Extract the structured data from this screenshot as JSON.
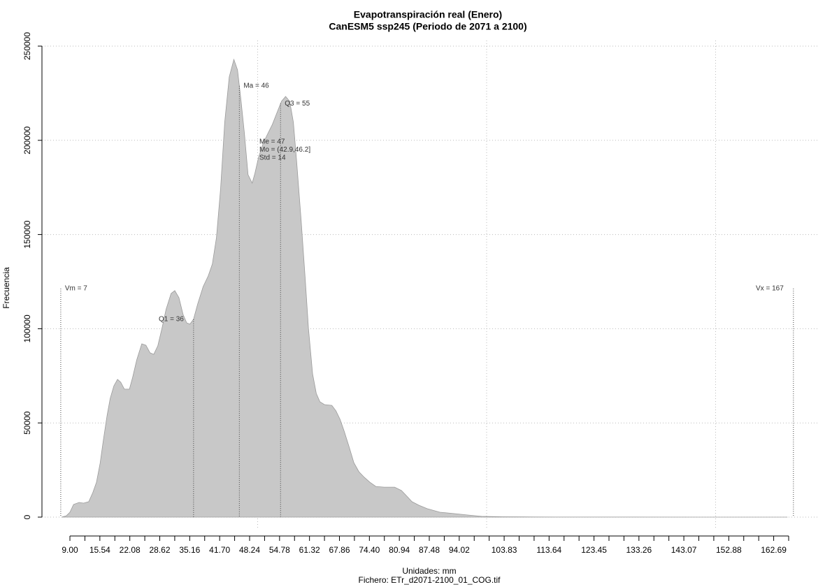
{
  "chart_data": {
    "type": "area",
    "title": "Evapotranspiración real (Enero)",
    "subtitle": "CanESM5 ssp245 (Periodo de 2071 a 2100)",
    "xlabel": "Unidades: mm",
    "ylabel": "Frecuencia",
    "caption": "Fichero: ETr_d2071-2100_01_COG.tif",
    "color": "#c8c8c8",
    "x": [
      7.2,
      8.2,
      9.0,
      9.8,
      11.0,
      12.0,
      13.1,
      14.0,
      14.8,
      15.6,
      16.3,
      17.1,
      17.8,
      18.6,
      19.4,
      20.1,
      20.9,
      22.0,
      22.7,
      23.6,
      24.7,
      25.6,
      26.5,
      27.3,
      28.2,
      29.1,
      30.0,
      31.1,
      31.9,
      32.8,
      33.7,
      34.5,
      35.2,
      36.0,
      36.9,
      38.1,
      39.2,
      40.1,
      41.0,
      41.9,
      42.8,
      43.8,
      44.8,
      45.6,
      46.3,
      47.1,
      47.9,
      48.8,
      49.4,
      50.2,
      51.2,
      52.3,
      53.2,
      54.1,
      55.2,
      56.1,
      57.0,
      57.8,
      58.5,
      59.5,
      60.4,
      61.1,
      62.0,
      62.8,
      63.6,
      64.6,
      66.2,
      67.1,
      68.0,
      68.9,
      70.0,
      71.0,
      72.1,
      73.3,
      74.5,
      75.8,
      77.6,
      79.9,
      81.4,
      82.6,
      83.7,
      85.2,
      87.0,
      89.8,
      92.8,
      95.9,
      98.9,
      103.5,
      108.1,
      115.7,
      131,
      146,
      165.7
    ],
    "values": [
      0,
      700,
      2600,
      6700,
      7800,
      7400,
      8200,
      13000,
      18500,
      28600,
      40800,
      53800,
      63000,
      69700,
      73100,
      71600,
      67900,
      67900,
      74200,
      83500,
      92000,
      91200,
      87200,
      86400,
      90900,
      100100,
      110200,
      118700,
      120200,
      116500,
      107600,
      103100,
      102400,
      105000,
      113100,
      122400,
      128000,
      134300,
      148400,
      174300,
      209600,
      233700,
      242900,
      237400,
      222500,
      204000,
      181700,
      177300,
      182500,
      191000,
      198400,
      204000,
      208400,
      214000,
      220700,
      223300,
      220700,
      209600,
      189200,
      157600,
      126100,
      100100,
      76000,
      65600,
      61200,
      59700,
      59300,
      56400,
      51900,
      45600,
      37100,
      28900,
      24100,
      21100,
      18500,
      16300,
      15900,
      15900,
      14100,
      11100,
      8200,
      6300,
      4500,
      2600,
      1900,
      1100,
      400,
      200,
      100,
      50,
      20,
      10,
      0
    ],
    "xlim": [
      9,
      165.96
    ],
    "ylim": [
      0,
      250000
    ],
    "yticks": [
      0,
      50000,
      100000,
      150000,
      200000,
      250000
    ],
    "xticks": [
      {
        "value": 9,
        "label": "9.00"
      },
      15.54,
      22.08,
      28.62,
      35.16,
      {
        "value": 41.7,
        "label": "41.70"
      },
      48.24,
      54.78,
      61.32,
      67.86,
      {
        "value": 74.4,
        "label": "74.40"
      },
      80.94,
      87.48,
      94.02,
      103.83,
      113.64,
      123.45,
      133.26,
      143.07,
      152.88,
      162.69
    ],
    "xticks_minor": [
      12.27,
      18.81,
      25.35,
      31.89,
      38.43,
      44.97,
      51.51,
      58.05,
      64.59,
      71.13,
      77.67,
      84.21,
      90.75,
      97.29,
      100.56,
      107.1,
      110.37,
      116.91,
      120.18,
      126.72,
      129.99,
      136.53,
      139.8,
      146.34,
      149.61,
      156.15,
      159.42,
      165.96
    ],
    "xgrid": [
      50,
      100,
      150
    ],
    "grid": true,
    "annotations": [
      {
        "label": "Vm = 7",
        "x": 7,
        "side": "right"
      },
      {
        "label": "Q1 = 36",
        "x": 36,
        "side": "left"
      },
      {
        "label": "Ma = 46",
        "x": 46,
        "side": "right"
      },
      {
        "label": "Q3 = 55",
        "x": 55,
        "side": "right"
      },
      {
        "label": "Vx = 167",
        "x": 167,
        "side": "left"
      }
    ],
    "stats": [
      "Me = 47",
      "Mo = (42.9,46.2]",
      "Std = 14"
    ]
  }
}
